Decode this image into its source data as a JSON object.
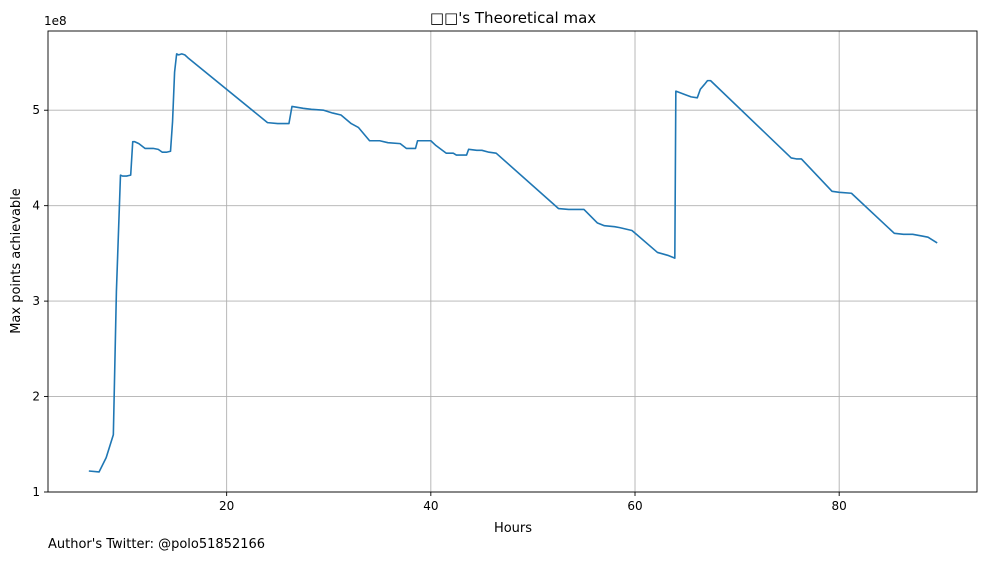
{
  "chart_data": {
    "type": "line",
    "title": "□□'s Theoretical max",
    "xlabel": "Hours",
    "ylabel": "Max points achievable",
    "y_offset_label": "1e8",
    "xlim": [
      2.5,
      93.5
    ],
    "ylim": [
      1.0,
      5.83
    ],
    "x_ticks": [
      20,
      40,
      60,
      80
    ],
    "y_ticks": [
      1,
      2,
      3,
      4,
      5
    ],
    "grid": true,
    "line_color": "#1f77b4",
    "series": [
      {
        "x": [
          6.5,
          7.5,
          8.2,
          8.9,
          9.2,
          9.6,
          9.8,
          10.2,
          10.6,
          10.8,
          11.0,
          11.4,
          12.0,
          12.3,
          12.8,
          13.3,
          13.7,
          14.1,
          14.5,
          14.7,
          14.9,
          15.1,
          15.3,
          15.6,
          15.9,
          16.2,
          24.0,
          25.0,
          25.5,
          26.1,
          26.4,
          27.5,
          28.3,
          29.5,
          30.4,
          31.2,
          32.2,
          32.9,
          34.0,
          35.0,
          35.8,
          37.0,
          37.6,
          38.5,
          38.7,
          40.0,
          40.5,
          41.5,
          42.2,
          42.5,
          43.5,
          43.7,
          44.5,
          45.0,
          45.7,
          46.4,
          52.5,
          53.5,
          55.0,
          56.3,
          57.0,
          58.0,
          58.5,
          59.7,
          62.2,
          63.2,
          63.9,
          64.0,
          65.0,
          65.5,
          66.1,
          66.4,
          66.8,
          67.1,
          67.4,
          75.3,
          75.8,
          76.3,
          79.3,
          80.0,
          81.2,
          85.4,
          86.3,
          87.2,
          88.2,
          88.7,
          89.6
        ],
        "y": [
          1.22,
          1.21,
          1.36,
          1.6,
          3.1,
          4.32,
          4.31,
          4.31,
          4.32,
          4.67,
          4.67,
          4.65,
          4.6,
          4.6,
          4.6,
          4.59,
          4.56,
          4.56,
          4.57,
          4.88,
          5.4,
          5.59,
          5.58,
          5.59,
          5.58,
          5.55,
          4.87,
          4.86,
          4.86,
          4.86,
          5.04,
          5.02,
          5.01,
          5.0,
          4.97,
          4.95,
          4.86,
          4.82,
          4.68,
          4.68,
          4.66,
          4.65,
          4.6,
          4.6,
          4.68,
          4.68,
          4.63,
          4.55,
          4.55,
          4.53,
          4.53,
          4.59,
          4.58,
          4.58,
          4.56,
          4.55,
          3.97,
          3.96,
          3.96,
          3.82,
          3.79,
          3.78,
          3.77,
          3.74,
          3.51,
          3.48,
          3.45,
          5.2,
          5.16,
          5.14,
          5.13,
          5.22,
          5.27,
          5.31,
          5.31,
          4.5,
          4.49,
          4.49,
          4.15,
          4.14,
          4.13,
          3.71,
          3.7,
          3.7,
          3.68,
          3.67,
          3.61
        ]
      }
    ]
  },
  "footer": {
    "text": "Author's Twitter: @polo51852166"
  }
}
